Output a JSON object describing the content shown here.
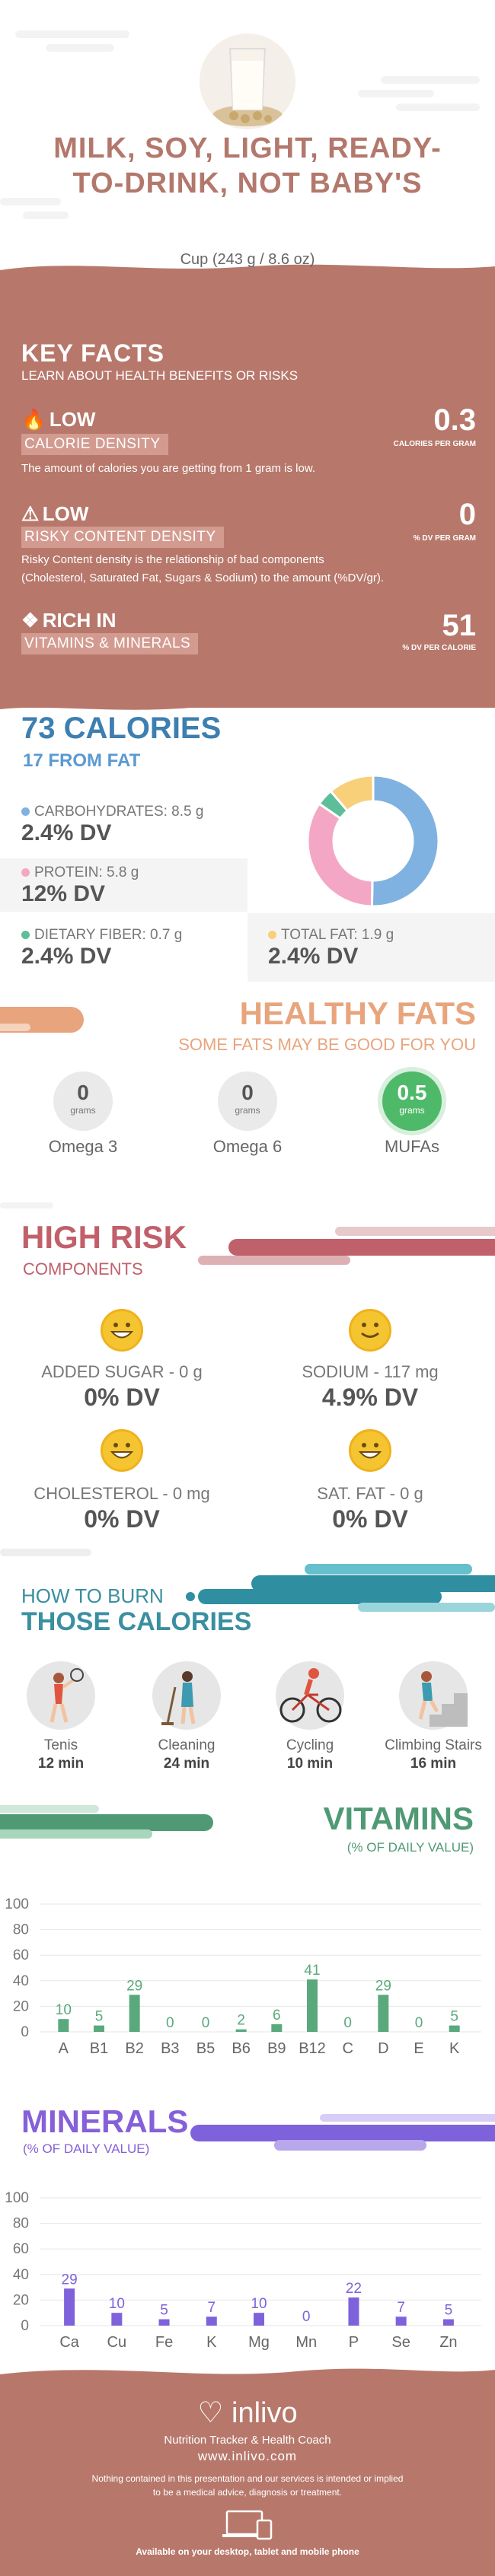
{
  "header": {
    "title": "MILK, SOY, LIGHT, READY-TO-DRINK, NOT BABY'S",
    "serving": "Cup (243 g / 8.6 oz)"
  },
  "key_facts": {
    "title": "KEY FACTS",
    "subtitle": "LEARN ABOUT HEALTH BENEFITS OR RISKS",
    "calorie": {
      "level": "LOW",
      "label": "CALORIE DENSITY",
      "value": "0.3",
      "unit": "CALORIES PER GRAM",
      "desc": "The amount of calories you are getting from 1 gram is low."
    },
    "risk": {
      "level": "LOW",
      "label": "RISKY CONTENT DENSITY",
      "value": "0",
      "unit": "% DV PER GRAM",
      "desc1": "Risky Content density is the relationship of bad components",
      "desc2": "(Cholesterol, Saturated Fat, Sugars & Sodium) to the amount (%DV/gr)."
    },
    "rich": {
      "level": "RICH  IN",
      "label": "VITAMINS & MINERALS",
      "value": "51",
      "unit": "% DV PER CALORIE"
    }
  },
  "calories": {
    "title": "73 CALORIES",
    "from_fat": "17 FROM FAT",
    "carbs": {
      "label": "CARBOHYDRATES: 8.5 g",
      "dv": "2.4% DV"
    },
    "protein": {
      "label": "PROTEIN: 5.8 g",
      "dv": "12% DV"
    },
    "fiber": {
      "label": "DIETARY FIBER: 0.7 g",
      "dv": "2.4% DV"
    },
    "fat": {
      "label": "TOTAL FAT: 1.9 g",
      "dv": "2.4% DV"
    },
    "colors": {
      "carbs": "#7fb2e0",
      "protein": "#f4a7c4",
      "fiber": "#5cbf9a",
      "fat": "#f8d07a"
    }
  },
  "donut": {
    "carbs": 8.5,
    "protein": 5.8,
    "fiber": 0.7,
    "fat": 1.9
  },
  "healthy_fats": {
    "title": "HEALTHY FATS",
    "subtitle": "SOME FATS MAY BE GOOD FOR YOU",
    "items": [
      {
        "value": "0",
        "unit": "grams",
        "name": "Omega 3"
      },
      {
        "value": "0",
        "unit": "grams",
        "name": "Omega 6"
      },
      {
        "value": "0.5",
        "unit": "grams",
        "name": "MUFAs"
      }
    ]
  },
  "high_risk": {
    "title": "HIGH RISK",
    "subtitle": "COMPONENTS",
    "items": [
      {
        "label": "ADDED SUGAR - 0 g",
        "dv": "0% DV"
      },
      {
        "label": "SODIUM - 117 mg",
        "dv": "4.9% DV"
      },
      {
        "label": "CHOLESTEROL - 0 mg",
        "dv": "0% DV"
      },
      {
        "label": "SAT. FAT - 0 g",
        "dv": "0% DV"
      }
    ]
  },
  "burn": {
    "title1": "HOW TO BURN",
    "title2": "THOSE CALORIES",
    "items": [
      {
        "name": "Tenis",
        "time": "12 min",
        "icon": "tennis-player-icon"
      },
      {
        "name": "Cleaning",
        "time": "24 min",
        "icon": "cleaning-person-icon"
      },
      {
        "name": "Cycling",
        "time": "10 min",
        "icon": "cyclist-icon"
      },
      {
        "name": "Climbing Stairs",
        "time": "16 min",
        "icon": "stair-climber-icon"
      }
    ]
  },
  "vitamins": {
    "title": "VITAMINS",
    "subtitle": "(% OF DAILY VALUE)"
  },
  "minerals": {
    "title": "MINERALS",
    "subtitle": "(% OF DAILY VALUE)"
  },
  "chart_data": [
    {
      "type": "bar",
      "title": "VITAMINS",
      "subtitle": "(% OF DAILY VALUE)",
      "categories": [
        "A",
        "B1",
        "B2",
        "B3",
        "B5",
        "B6",
        "B9",
        "B12",
        "C",
        "D",
        "E",
        "K"
      ],
      "values": [
        10,
        5,
        29,
        0,
        0,
        2,
        6,
        41,
        0,
        29,
        0,
        5
      ],
      "ylim": [
        0,
        100
      ],
      "yticks": [
        0,
        20,
        40,
        60,
        80,
        100
      ],
      "color": "#5aa97c",
      "grid": true
    },
    {
      "type": "bar",
      "title": "MINERALS",
      "subtitle": "(% OF DAILY VALUE)",
      "categories": [
        "Ca",
        "Cu",
        "Fe",
        "K",
        "Mg",
        "Mn",
        "P",
        "Se",
        "Zn"
      ],
      "values": [
        29,
        10,
        5,
        7,
        10,
        0,
        22,
        7,
        5
      ],
      "ylim": [
        0,
        100
      ],
      "yticks": [
        0,
        20,
        40,
        60,
        80,
        100
      ],
      "color": "#7e62db",
      "grid": true
    }
  ],
  "footer": {
    "logo": "inlivo",
    "tagline": "Nutrition Tracker & Health Coach",
    "url": "www.inlivo.com",
    "disclaimer1": "Nothing contained in this presentation and our services is intended or implied",
    "disclaimer2": "to be a medical advice, diagnosis or treatment.",
    "devices": "Available on your desktop, tablet and mobile phone"
  }
}
